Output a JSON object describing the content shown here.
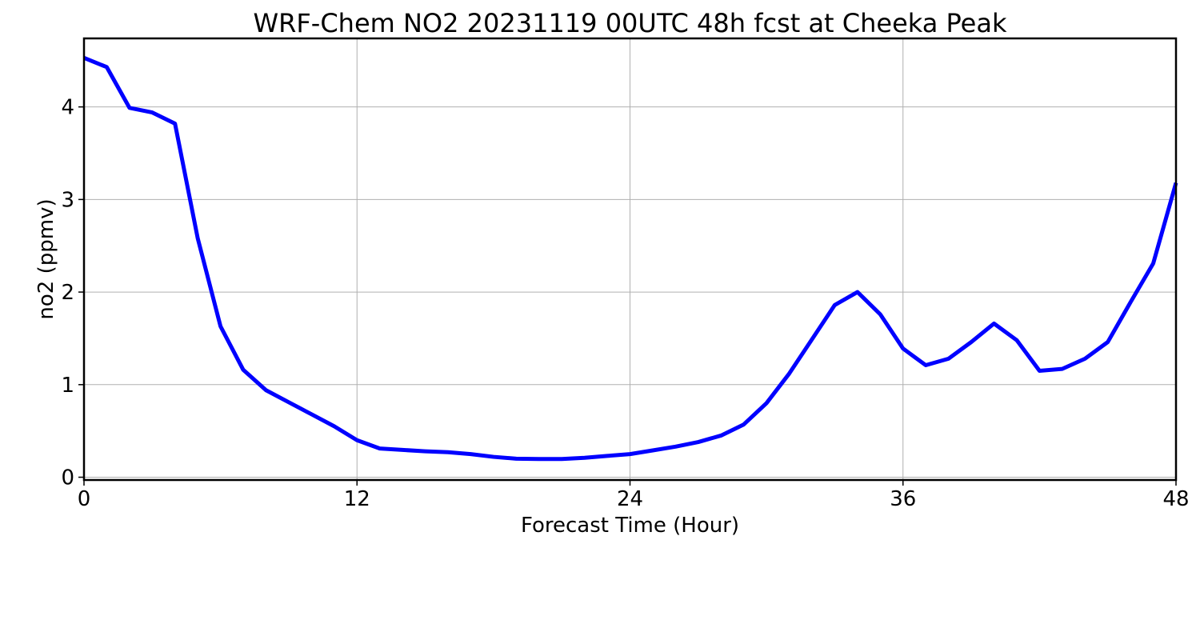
{
  "chart_data": {
    "type": "line",
    "title": "WRF-Chem NO2  20231119 00UTC 48h fcst at Cheeka Peak",
    "xlabel": "Forecast Time (Hour)",
    "ylabel": "no2  (ppmv)",
    "xlim": [
      0,
      48
    ],
    "ylim": [
      -0.03,
      4.74
    ],
    "xticks": [
      0,
      12,
      24,
      36,
      48
    ],
    "yticks": [
      0,
      1,
      2,
      3,
      4
    ],
    "grid": true,
    "series": [
      {
        "color": "#0000ff",
        "x": [
          0,
          1,
          2,
          3,
          4,
          5,
          6,
          7,
          8,
          9,
          10,
          11,
          12,
          13,
          14,
          15,
          16,
          17,
          18,
          19,
          20,
          21,
          22,
          23,
          24,
          25,
          26,
          27,
          28,
          29,
          30,
          31,
          32,
          33,
          34,
          35,
          36,
          37,
          38,
          39,
          40,
          41,
          42,
          43,
          44,
          45,
          46,
          47,
          48
        ],
        "values": [
          4.53,
          4.43,
          3.99,
          3.94,
          3.82,
          2.58,
          1.63,
          1.16,
          0.94,
          0.81,
          0.68,
          0.55,
          0.4,
          0.31,
          0.295,
          0.28,
          0.27,
          0.25,
          0.22,
          0.2,
          0.197,
          0.197,
          0.21,
          0.23,
          0.25,
          0.29,
          0.33,
          0.38,
          0.45,
          0.57,
          0.8,
          1.12,
          1.49,
          1.86,
          2.0,
          1.76,
          1.39,
          1.21,
          1.28,
          1.46,
          1.66,
          1.48,
          1.15,
          1.17,
          1.28,
          1.46,
          1.89,
          2.31,
          3.18
        ]
      }
    ]
  }
}
